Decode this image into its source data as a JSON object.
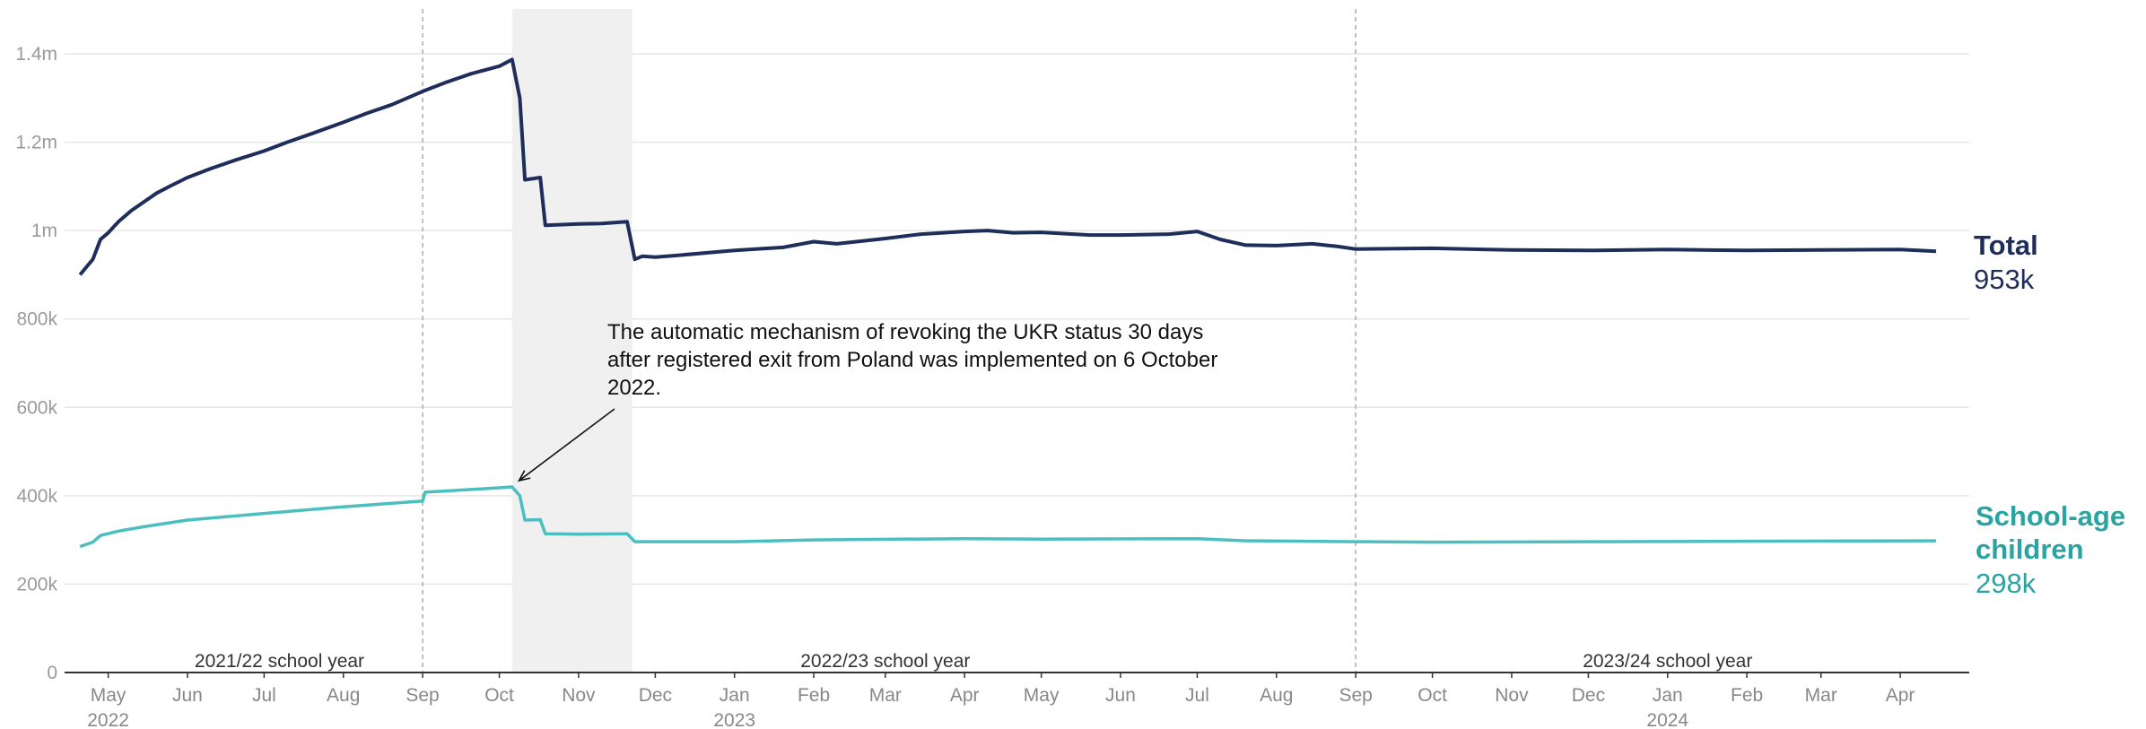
{
  "chart_data": {
    "type": "line",
    "title": "",
    "xlabel": "",
    "ylabel": "",
    "ylim": [
      0,
      1400000
    ],
    "y_ticks": [
      {
        "value": 0,
        "label": "0"
      },
      {
        "value": 200000,
        "label": "200k"
      },
      {
        "value": 400000,
        "label": "400k"
      },
      {
        "value": 600000,
        "label": "600k"
      },
      {
        "value": 800000,
        "label": "800k"
      },
      {
        "value": 1000000,
        "label": "1m"
      },
      {
        "value": 1200000,
        "label": "1.2m"
      },
      {
        "value": 1400000,
        "label": "1.4m"
      }
    ],
    "x_ticks": [
      {
        "date": "2022-05-01",
        "label": "May",
        "year": "2022"
      },
      {
        "date": "2022-06-01",
        "label": "Jun"
      },
      {
        "date": "2022-07-01",
        "label": "Jul"
      },
      {
        "date": "2022-08-01",
        "label": "Aug"
      },
      {
        "date": "2022-09-01",
        "label": "Sep"
      },
      {
        "date": "2022-10-01",
        "label": "Oct"
      },
      {
        "date": "2022-11-01",
        "label": "Nov"
      },
      {
        "date": "2022-12-01",
        "label": "Dec"
      },
      {
        "date": "2023-01-01",
        "label": "Jan",
        "year": "2023"
      },
      {
        "date": "2023-02-01",
        "label": "Feb"
      },
      {
        "date": "2023-03-01",
        "label": "Mar"
      },
      {
        "date": "2023-04-01",
        "label": "Apr"
      },
      {
        "date": "2023-05-01",
        "label": "May"
      },
      {
        "date": "2023-06-01",
        "label": "Jun"
      },
      {
        "date": "2023-07-01",
        "label": "Jul"
      },
      {
        "date": "2023-08-01",
        "label": "Aug"
      },
      {
        "date": "2023-09-01",
        "label": "Sep"
      },
      {
        "date": "2023-10-01",
        "label": "Oct"
      },
      {
        "date": "2023-11-01",
        "label": "Nov"
      },
      {
        "date": "2023-12-01",
        "label": "Dec"
      },
      {
        "date": "2024-01-01",
        "label": "Jan",
        "year": "2024"
      },
      {
        "date": "2024-02-01",
        "label": "Feb"
      },
      {
        "date": "2024-03-01",
        "label": "Mar"
      },
      {
        "date": "2024-04-01",
        "label": "Apr"
      }
    ],
    "school_year_dividers": [
      "2022-09-01",
      "2023-09-01"
    ],
    "school_years": [
      {
        "label": "2021/22 school year",
        "center": "2022-07-07"
      },
      {
        "label": "2022/23 school year",
        "center": "2023-03-01"
      },
      {
        "label": "2023/24 school year",
        "center": "2024-01-01"
      }
    ],
    "shaded_period": {
      "start": "2022-10-06",
      "end": "2022-11-22"
    },
    "annotation": {
      "lines": [
        "The automatic mechanism of revoking the UKR status 30 days",
        "after registered exit from Poland was implemented on 6 October",
        "2022."
      ],
      "arrow_to": {
        "date": "2022-10-08",
        "value": 430000
      }
    },
    "series": [
      {
        "name": "Total",
        "end_label": "953k",
        "color": "#1f2d5a",
        "points": [
          [
            "2022-04-20",
            900000
          ],
          [
            "2022-04-25",
            935000
          ],
          [
            "2022-04-28",
            980000
          ],
          [
            "2022-05-01",
            995000
          ],
          [
            "2022-05-05",
            1020000
          ],
          [
            "2022-05-10",
            1045000
          ],
          [
            "2022-05-15",
            1065000
          ],
          [
            "2022-05-20",
            1085000
          ],
          [
            "2022-05-25",
            1100000
          ],
          [
            "2022-06-01",
            1120000
          ],
          [
            "2022-06-10",
            1140000
          ],
          [
            "2022-06-20",
            1160000
          ],
          [
            "2022-07-01",
            1180000
          ],
          [
            "2022-07-10",
            1200000
          ],
          [
            "2022-07-20",
            1220000
          ],
          [
            "2022-08-01",
            1245000
          ],
          [
            "2022-08-10",
            1265000
          ],
          [
            "2022-08-20",
            1285000
          ],
          [
            "2022-09-01",
            1315000
          ],
          [
            "2022-09-10",
            1335000
          ],
          [
            "2022-09-20",
            1355000
          ],
          [
            "2022-10-01",
            1372000
          ],
          [
            "2022-10-06",
            1387000
          ],
          [
            "2022-10-09",
            1300000
          ],
          [
            "2022-10-11",
            1115000
          ],
          [
            "2022-10-17",
            1120000
          ],
          [
            "2022-10-19",
            1012000
          ],
          [
            "2022-11-01",
            1015000
          ],
          [
            "2022-11-10",
            1016000
          ],
          [
            "2022-11-20",
            1020000
          ],
          [
            "2022-11-23",
            935000
          ],
          [
            "2022-11-26",
            942000
          ],
          [
            "2022-12-01",
            940000
          ],
          [
            "2022-12-10",
            944000
          ],
          [
            "2023-01-01",
            955000
          ],
          [
            "2023-01-20",
            962000
          ],
          [
            "2023-02-01",
            975000
          ],
          [
            "2023-02-10",
            970000
          ],
          [
            "2023-03-01",
            982000
          ],
          [
            "2023-03-15",
            992000
          ],
          [
            "2023-04-01",
            998000
          ],
          [
            "2023-04-10",
            1000000
          ],
          [
            "2023-04-20",
            995000
          ],
          [
            "2023-05-01",
            996000
          ],
          [
            "2023-05-20",
            990000
          ],
          [
            "2023-06-01",
            990000
          ],
          [
            "2023-06-20",
            992000
          ],
          [
            "2023-07-01",
            998000
          ],
          [
            "2023-07-10",
            980000
          ],
          [
            "2023-07-20",
            967000
          ],
          [
            "2023-08-01",
            966000
          ],
          [
            "2023-08-15",
            970000
          ],
          [
            "2023-08-25",
            964000
          ],
          [
            "2023-09-01",
            958000
          ],
          [
            "2023-10-01",
            960000
          ],
          [
            "2023-11-01",
            956000
          ],
          [
            "2023-12-01",
            955000
          ],
          [
            "2024-01-01",
            957000
          ],
          [
            "2024-02-01",
            955000
          ],
          [
            "2024-03-01",
            956000
          ],
          [
            "2024-04-01",
            957000
          ],
          [
            "2024-04-15",
            953000
          ]
        ]
      },
      {
        "name": "School-age children",
        "end_label": "298k",
        "color": "#4bbfc0",
        "points": [
          [
            "2022-04-20",
            285000
          ],
          [
            "2022-04-25",
            295000
          ],
          [
            "2022-04-28",
            310000
          ],
          [
            "2022-05-05",
            320000
          ],
          [
            "2022-05-15",
            330000
          ],
          [
            "2022-06-01",
            345000
          ],
          [
            "2022-07-01",
            360000
          ],
          [
            "2022-08-01",
            375000
          ],
          [
            "2022-09-01",
            388000
          ],
          [
            "2022-09-02",
            408000
          ],
          [
            "2022-10-01",
            418000
          ],
          [
            "2022-10-06",
            420000
          ],
          [
            "2022-10-09",
            400000
          ],
          [
            "2022-10-11",
            345000
          ],
          [
            "2022-10-17",
            346000
          ],
          [
            "2022-10-19",
            314000
          ],
          [
            "2022-11-01",
            313000
          ],
          [
            "2022-11-20",
            314000
          ],
          [
            "2022-11-23",
            296000
          ],
          [
            "2023-01-01",
            296000
          ],
          [
            "2023-02-01",
            300000
          ],
          [
            "2023-04-01",
            303000
          ],
          [
            "2023-05-01",
            302000
          ],
          [
            "2023-07-01",
            303000
          ],
          [
            "2023-07-20",
            298000
          ],
          [
            "2023-09-01",
            296000
          ],
          [
            "2023-10-01",
            295000
          ],
          [
            "2023-12-01",
            296000
          ],
          [
            "2024-04-15",
            298000
          ]
        ]
      }
    ]
  }
}
